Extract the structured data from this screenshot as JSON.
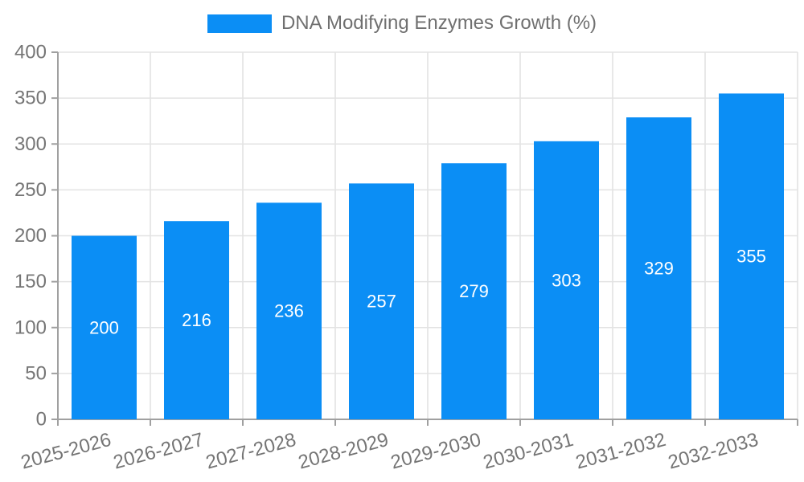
{
  "chart_data": {
    "type": "bar",
    "title": "DNA Modifying Enzymes Growth (%)",
    "legend_label": "DNA Modifying Enzymes Growth (%)",
    "legend_position": "top-center",
    "categories": [
      "2025-2026",
      "2026-2027",
      "2027-2028",
      "2028-2029",
      "2029-2030",
      "2030-2031",
      "2031-2032",
      "2032-2033"
    ],
    "values": [
      200,
      216,
      236,
      257,
      279,
      303,
      329,
      355
    ],
    "xlabel": "",
    "ylabel": "",
    "ylim": [
      0,
      400
    ],
    "yticks": [
      0,
      50,
      100,
      150,
      200,
      250,
      300,
      350,
      400
    ],
    "grid": "on",
    "value_label_position": "inside-center",
    "x_label_rotation_deg": -15,
    "colors": {
      "bar": "#0b8ef5",
      "value_label": "#ffffff",
      "axis_line": "#a0a0a0",
      "grid_line": "#e3e3e3",
      "tick_label": "#757575",
      "legend_text": "#707070",
      "background": "#ffffff"
    }
  }
}
